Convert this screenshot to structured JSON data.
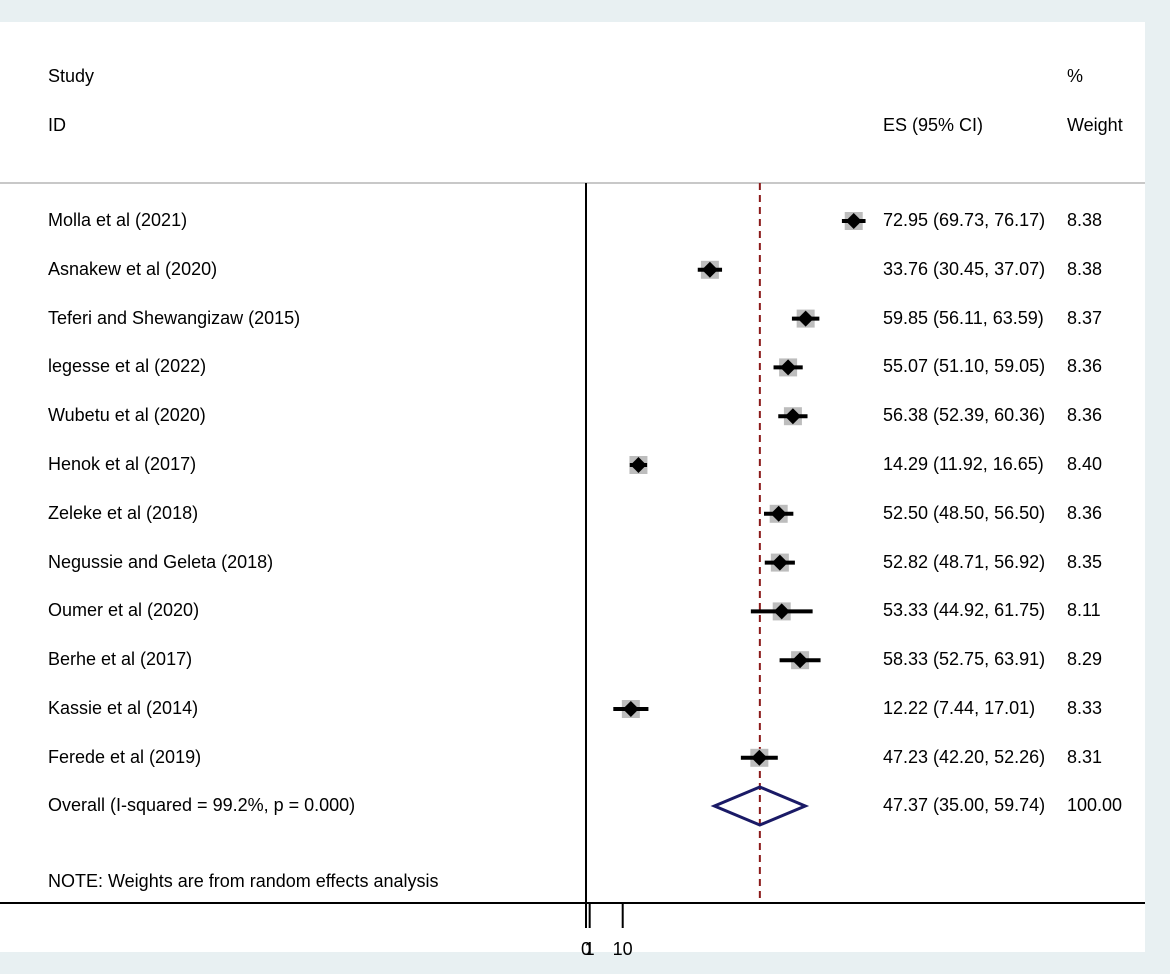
{
  "chart_data": {
    "type": "forest",
    "header": {
      "study": "Study",
      "id": "ID",
      "es": "ES (95% CI)",
      "percent": "%",
      "weight": "Weight"
    },
    "studies": [
      {
        "label": "Molla et al (2021)",
        "es": 72.95,
        "lo": 69.73,
        "hi": 76.17,
        "es_text": "72.95 (69.73, 76.17)",
        "weight": "8.38"
      },
      {
        "label": "Asnakew et al (2020)",
        "es": 33.76,
        "lo": 30.45,
        "hi": 37.07,
        "es_text": "33.76 (30.45, 37.07)",
        "weight": "8.38"
      },
      {
        "label": "Teferi and Shewangizaw  (2015)",
        "es": 59.85,
        "lo": 56.11,
        "hi": 63.59,
        "es_text": "59.85 (56.11, 63.59)",
        "weight": "8.37"
      },
      {
        "label": "legesse et al (2022)",
        "es": 55.07,
        "lo": 51.1,
        "hi": 59.05,
        "es_text": "55.07 (51.10, 59.05)",
        "weight": "8.36"
      },
      {
        "label": "Wubetu et al (2020)",
        "es": 56.38,
        "lo": 52.39,
        "hi": 60.36,
        "es_text": "56.38 (52.39, 60.36)",
        "weight": "8.36"
      },
      {
        "label": "Henok et al (2017)",
        "es": 14.29,
        "lo": 11.92,
        "hi": 16.65,
        "es_text": "14.29 (11.92, 16.65)",
        "weight": "8.40"
      },
      {
        "label": "Zeleke et al (2018)",
        "es": 52.5,
        "lo": 48.5,
        "hi": 56.5,
        "es_text": "52.50 (48.50, 56.50)",
        "weight": "8.36"
      },
      {
        "label": "Negussie and Geleta (2018)",
        "es": 52.82,
        "lo": 48.71,
        "hi": 56.92,
        "es_text": "52.82 (48.71, 56.92)",
        "weight": "8.35"
      },
      {
        "label": "Oumer et al (2020)",
        "es": 53.33,
        "lo": 44.92,
        "hi": 61.75,
        "es_text": "53.33 (44.92, 61.75)",
        "weight": "8.11"
      },
      {
        "label": "Berhe et al  (2017)",
        "es": 58.33,
        "lo": 52.75,
        "hi": 63.91,
        "es_text": "58.33 (52.75, 63.91)",
        "weight": "8.29"
      },
      {
        "label": "Kassie et al (2014)",
        "es": 12.22,
        "lo": 7.44,
        "hi": 17.01,
        "es_text": "12.22 (7.44, 17.01)",
        "weight": "8.33"
      },
      {
        "label": "Ferede et al (2019)",
        "es": 47.23,
        "lo": 42.2,
        "hi": 52.26,
        "es_text": "47.23 (42.20, 52.26)",
        "weight": "8.31"
      }
    ],
    "overall": {
      "label": "Overall  (I-squared = 99.2%, p = 0.000)",
      "es": 47.37,
      "lo": 35.0,
      "hi": 59.74,
      "es_text": "47.37 (35.00, 59.74)",
      "weight": "100.00"
    },
    "note": "NOTE: Weights are from random effects analysis",
    "x_ticks": [
      {
        "value": 0,
        "label": "0"
      },
      {
        "value": 1,
        "label": "1"
      },
      {
        "value": 10,
        "label": "10"
      }
    ],
    "null_line": 0,
    "reference_line": 47.37,
    "colors": {
      "marker": "#000000",
      "weight_box": "#bdbdbd",
      "reference_line": "#8b1a1a",
      "diamond": "#1a1a66",
      "separator": "#c8c8c8",
      "panel_bg": "#ffffff",
      "outer_bg": "#e8f0f2"
    }
  }
}
